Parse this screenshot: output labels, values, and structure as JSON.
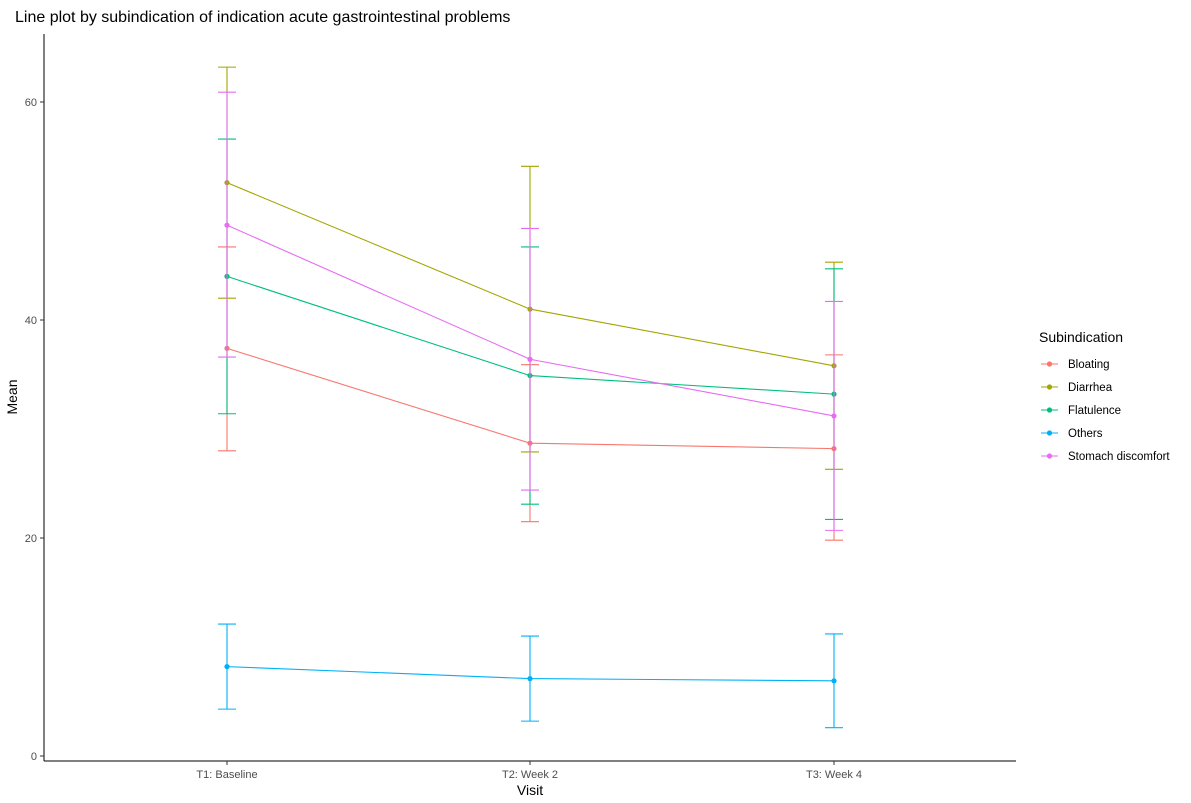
{
  "chart_data": {
    "type": "line",
    "title": "Line plot by subindication of indication acute gastrointestinal problems",
    "xlabel": "Visit",
    "ylabel": "Mean",
    "categories": [
      "T1: Baseline",
      "T2: Week 2",
      "T3: Week 4"
    ],
    "ylim": [
      0,
      66
    ],
    "yticks": [
      0,
      20,
      40,
      60
    ],
    "grid": false,
    "legend": {
      "title": "Subindication",
      "placement": "right"
    },
    "error_bars": true,
    "series": [
      {
        "name": "Bloating",
        "color": "#F8766D",
        "values": [
          37.4,
          28.7,
          28.2
        ],
        "lower": [
          28.0,
          21.5,
          19.8
        ],
        "upper": [
          46.7,
          35.9,
          36.8
        ]
      },
      {
        "name": "Diarrhea",
        "color": "#A3A500",
        "values": [
          52.6,
          41.0,
          35.8
        ],
        "lower": [
          42.0,
          27.9,
          26.3
        ],
        "upper": [
          63.2,
          54.1,
          45.3
        ]
      },
      {
        "name": "Flatulence",
        "color": "#00BF7D",
        "values": [
          44.0,
          34.9,
          33.2
        ],
        "lower": [
          31.4,
          23.1,
          21.7
        ],
        "upper": [
          56.6,
          46.7,
          44.7
        ]
      },
      {
        "name": "Others",
        "color": "#00B0F6",
        "values": [
          8.2,
          7.1,
          6.9
        ],
        "lower": [
          4.3,
          3.2,
          2.6
        ],
        "upper": [
          12.1,
          11.0,
          11.2
        ]
      },
      {
        "name": "Stomach discomfort",
        "color": "#E76BF3",
        "values": [
          48.7,
          36.4,
          31.2
        ],
        "lower": [
          36.6,
          24.4,
          20.7
        ],
        "upper": [
          60.9,
          48.4,
          41.7
        ]
      }
    ]
  }
}
